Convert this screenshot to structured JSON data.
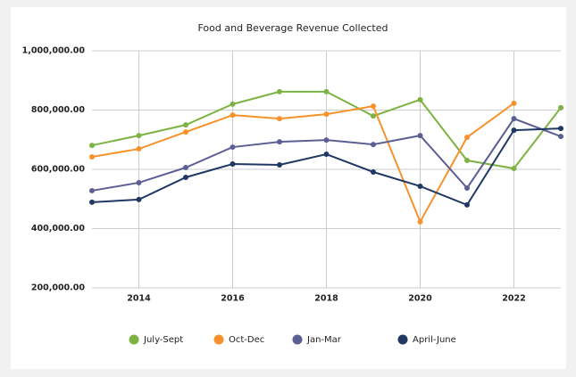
{
  "chart_data": {
    "type": "line",
    "title": "Food and Beverage Revenue Collected",
    "x": [
      2013,
      2014,
      2015,
      2016,
      2017,
      2018,
      2019,
      2020,
      2021,
      2022,
      2023
    ],
    "xlim": [
      2013,
      2023
    ],
    "xticks": [
      2014,
      2016,
      2018,
      2020,
      2022
    ],
    "ylim": [
      200000,
      1000000
    ],
    "yticks": [
      {
        "value": 200000,
        "label": "200,000.00"
      },
      {
        "value": 400000,
        "label": "400,000.00"
      },
      {
        "value": 600000,
        "label": "600,000.00"
      },
      {
        "value": 800000,
        "label": "800,000.00"
      },
      {
        "value": 1000000,
        "label": "1,000,000.00"
      }
    ],
    "grid": true,
    "legend": "bottom",
    "series": [
      {
        "name": "July-Sept",
        "color": "#7cb342",
        "values": [
          681000,
          714000,
          750000,
          820000,
          862000,
          862000,
          780000,
          835000,
          630000,
          603000,
          808000
        ]
      },
      {
        "name": "Oct-Dec",
        "color": "#f7922a",
        "values": [
          642000,
          669000,
          726000,
          783000,
          771000,
          786000,
          813000,
          423000,
          708000,
          823000,
          null
        ]
      },
      {
        "name": "Jan-Mar",
        "color": "#5c5f94",
        "values": [
          528000,
          555000,
          606000,
          675000,
          693000,
          699000,
          684000,
          714000,
          537000,
          771000,
          711000
        ]
      },
      {
        "name": "April-June",
        "color": "#1f3864",
        "values": [
          489000,
          498000,
          573000,
          618000,
          615000,
          651000,
          591000,
          543000,
          480000,
          732000,
          738000
        ]
      }
    ]
  }
}
